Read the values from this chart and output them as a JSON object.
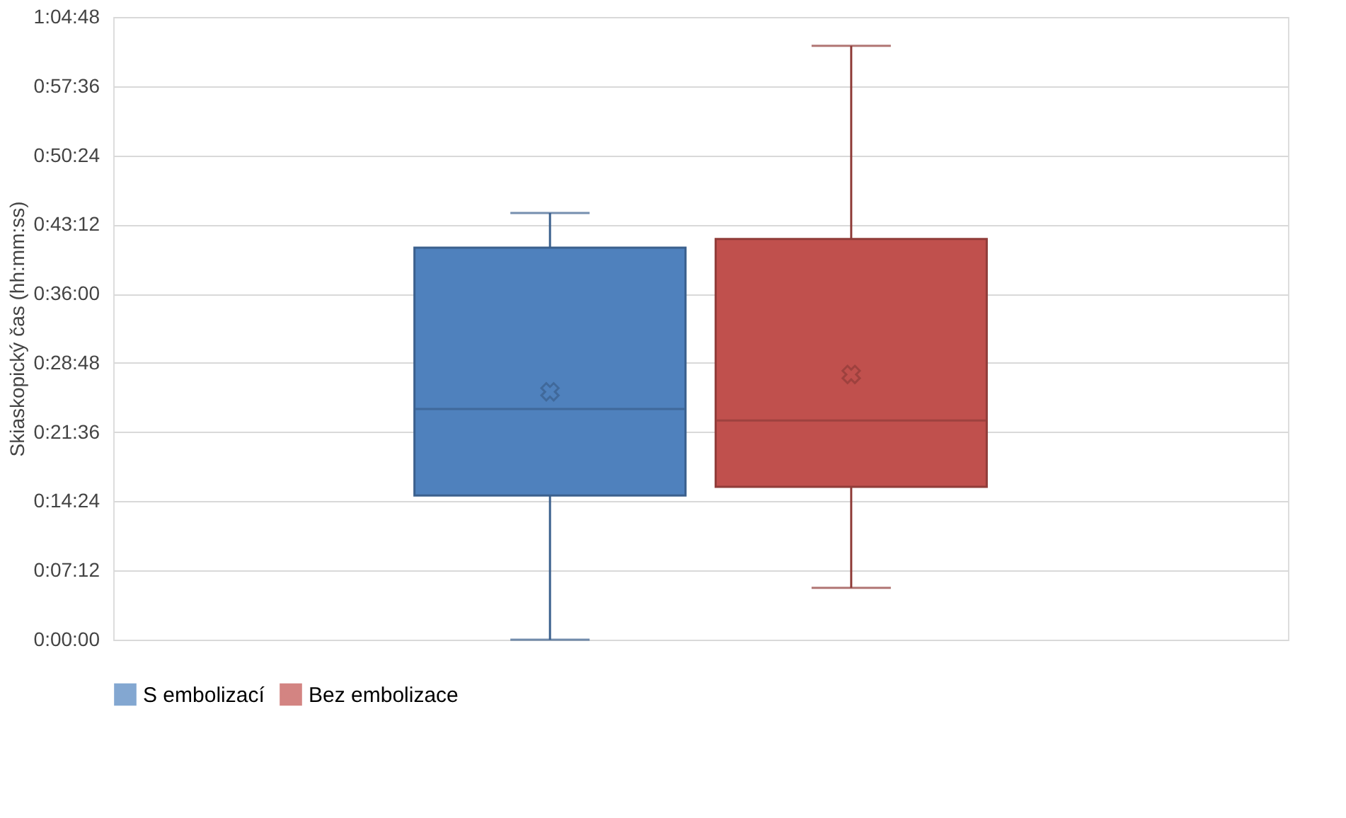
{
  "chart_data": {
    "type": "box",
    "ylabel": "Skiaskopický čas (hh:mm:ss)",
    "categories": [
      null
    ],
    "series": [
      {
        "name": "S embolizací",
        "color": "#4f81bd",
        "boxes": [
          {
            "low": 0,
            "q1": 0.25,
            "median": 0.4,
            "q3": 0.68,
            "high": 0.74,
            "mean": 0.43
          }
        ]
      },
      {
        "name": "Bez embolizace",
        "color": "#c0504d",
        "boxes": [
          {
            "low": 0.09,
            "q1": 0.265,
            "median": 0.38,
            "q3": 0.695,
            "high": 1.03,
            "mean": 0.46
          }
        ]
      }
    ],
    "ylim": [
      0,
      1.08
    ],
    "yticks": [
      {
        "value": 0,
        "label": "0:00:00"
      },
      {
        "value": 0.12,
        "label": "0:07:12"
      },
      {
        "value": 0.24,
        "label": "0:14:24"
      },
      {
        "value": 0.36,
        "label": "0:21:36"
      },
      {
        "value": 0.48,
        "label": "0:28:48"
      },
      {
        "value": 0.6,
        "label": "0:36:00"
      },
      {
        "value": 0.72,
        "label": "0:43:12"
      },
      {
        "value": 0.84,
        "label": "0:50:24"
      },
      {
        "value": 0.96,
        "label": "0:57:36"
      },
      {
        "value": 1.08,
        "label": "1:04:48"
      }
    ],
    "grid": "y",
    "legend": "bottom",
    "marker": "cross"
  }
}
